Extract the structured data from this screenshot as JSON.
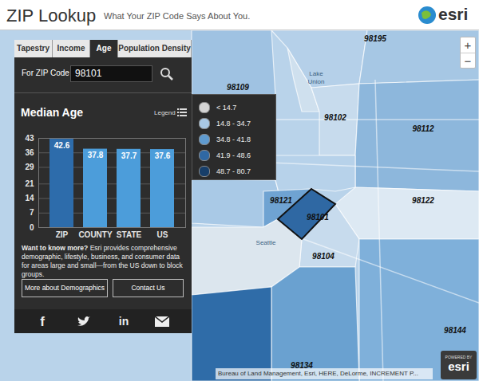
{
  "header": {
    "title": "ZIP Lookup",
    "subtitle": "What Your ZIP Code Says About You.",
    "logo": "esri"
  },
  "tabs": [
    "Tapestry",
    "Income",
    "Age",
    "Population Density"
  ],
  "active_tab": "Age",
  "search": {
    "label": "For ZIP Code",
    "value": "98101"
  },
  "legend": {
    "button": "Legend",
    "items": [
      {
        "label": "< 14.7",
        "color": "#d4d4d4"
      },
      {
        "label": "14.8 - 34.7",
        "color": "#a9c9e6"
      },
      {
        "label": "34.8 - 41.8",
        "color": "#5f9bd0"
      },
      {
        "label": "41.9 - 48.6",
        "color": "#2f68a3"
      },
      {
        "label": "48.7 - 80.7",
        "color": "#173e69"
      }
    ]
  },
  "chart_data": {
    "type": "bar",
    "title": "Median Age",
    "categories": [
      "ZIP",
      "COUNTY",
      "STATE",
      "US"
    ],
    "values": [
      42.6,
      37.8,
      37.7,
      37.6
    ],
    "colors": [
      "#2d6cab",
      "#4c9dda",
      "#4c9dda",
      "#4c9dda"
    ],
    "ylim": [
      0,
      43
    ],
    "yticks": [
      0,
      7,
      14,
      21,
      29,
      36,
      43
    ],
    "grid": true,
    "data_labels": true
  },
  "info": {
    "lead": "Want to know more?",
    "text": "Esri provides comprehensive demographic, lifestyle, business, and consumer data for areas large and small—from the US down to block groups."
  },
  "buttons": [
    "More about Demographics",
    "Contact Us"
  ],
  "social_labels": [
    "f",
    "in"
  ],
  "zoom": [
    "+",
    "−"
  ],
  "map": {
    "zip_labels": [
      "98195",
      "98102",
      "98112",
      "98109",
      "98121",
      "98101",
      "98122",
      "98104",
      "98144",
      "98134"
    ],
    "place_labels": [
      "Lake Union",
      "Seattle"
    ]
  },
  "attribution": "Bureau of Land Management, Esri, HERE, DeLorme, INCREMENT P...",
  "badge": {
    "top": "POWERED BY",
    "logo": "esri"
  }
}
